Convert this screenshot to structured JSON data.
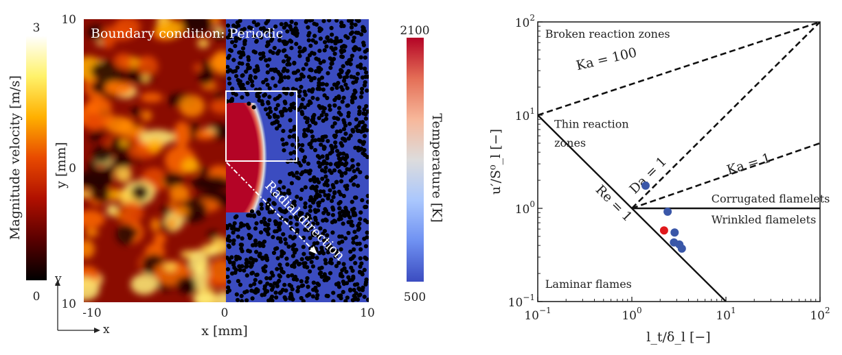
{
  "left_panel": {
    "annotation": "Boundary condition: Periodic",
    "radial_label": "Radial direction",
    "xlabel": "x [mm]",
    "ylabel": "y [mm]",
    "x_ticks": [
      "-10",
      "0",
      "10"
    ],
    "y_ticks": [
      "10",
      "0",
      "10"
    ],
    "axis_icon_x": "x",
    "axis_icon_y": "y",
    "velocity_colorbar": {
      "label": "Magnitude velocity [m/s]",
      "min": "0",
      "max": "3",
      "colors": [
        "#000000",
        "#5a0000",
        "#b01000",
        "#e84a00",
        "#ffb000",
        "#fff26a",
        "#ffffff"
      ]
    },
    "temperature_colorbar": {
      "label": "Temperature [K]",
      "min": "500",
      "max": "2100",
      "colors": [
        "#3b4cc0",
        "#6f91f2",
        "#aac7fd",
        "#dddcdc",
        "#f7b79a",
        "#e46e56",
        "#b40426"
      ]
    },
    "colors": {
      "flame_core": "#b40426",
      "background_blue": "#3b4cc0",
      "particles": "#000000"
    }
  },
  "chart_data": {
    "type": "scatter",
    "title": "",
    "xlabel": "l_t/δ_l [−]",
    "ylabel": "u′/S⁰_l [−]",
    "xscale": "log",
    "yscale": "log",
    "xlim": [
      0.1,
      100
    ],
    "ylim": [
      0.1,
      100
    ],
    "x_ticks": [
      {
        "v": 0.1,
        "base": "10",
        "exp": "−1"
      },
      {
        "v": 1,
        "base": "10",
        "exp": "0"
      },
      {
        "v": 10,
        "base": "10",
        "exp": "1"
      },
      {
        "v": 100,
        "base": "10",
        "exp": "2"
      }
    ],
    "y_ticks": [
      {
        "v": 0.1,
        "base": "10",
        "exp": "−1"
      },
      {
        "v": 1,
        "base": "10",
        "exp": "0"
      },
      {
        "v": 10,
        "base": "10",
        "exp": "1"
      },
      {
        "v": 100,
        "base": "10",
        "exp": "2"
      }
    ],
    "lines": [
      {
        "name": "Re = 1",
        "style": "solid",
        "x": [
          0.1,
          10
        ],
        "y": [
          10,
          0.1
        ]
      },
      {
        "name": "corrugated-wrinkled boundary",
        "style": "solid",
        "x": [
          1,
          100
        ],
        "y": [
          1,
          1
        ]
      },
      {
        "name": "Ka = 100",
        "style": "dashed",
        "x": [
          0.1,
          100
        ],
        "y": [
          10,
          100
        ]
      },
      {
        "name": "Da = 1",
        "style": "dashed",
        "x": [
          1,
          100
        ],
        "y": [
          1,
          100
        ]
      },
      {
        "name": "Ka = 1",
        "style": "dashed",
        "x": [
          1,
          100
        ],
        "y": [
          1,
          5
        ]
      }
    ],
    "line_labels": [
      {
        "text": "Ka = 100",
        "x": 0.55,
        "y": 36,
        "angle": -13
      },
      {
        "text": "Da = 1",
        "x": 1.6,
        "y": 2.1,
        "angle": -45
      },
      {
        "text": "Ka = 1",
        "x": 18,
        "y": 2.7,
        "angle": -17
      },
      {
        "text": "Re = 1",
        "x": 0.6,
        "y": 1.05,
        "angle": 45
      }
    ],
    "region_labels": [
      {
        "text": "Broken reaction zones",
        "x": 0.12,
        "y": 68
      },
      {
        "text": "Thin reaction",
        "x": 0.15,
        "y": 7.3
      },
      {
        "text": "zones",
        "x": 0.15,
        "y": 4.6
      },
      {
        "text": "Corrugated flamelets",
        "x": 7,
        "y": 1.15
      },
      {
        "text": "Wrinkled flamelets",
        "x": 7,
        "y": 0.69
      },
      {
        "text": "Laminar flames",
        "x": 0.12,
        "y": 0.14
      }
    ],
    "points": [
      {
        "x": 1.4,
        "y": 1.75,
        "color": "#3a57a8"
      },
      {
        "x": 2.4,
        "y": 0.92,
        "color": "#3a57a8"
      },
      {
        "x": 2.2,
        "y": 0.58,
        "color": "#e0191c"
      },
      {
        "x": 2.85,
        "y": 0.55,
        "color": "#3a57a8"
      },
      {
        "x": 2.8,
        "y": 0.43,
        "color": "#3a57a8"
      },
      {
        "x": 3.2,
        "y": 0.41,
        "color": "#3a57a8"
      },
      {
        "x": 3.4,
        "y": 0.37,
        "color": "#3a57a8"
      }
    ],
    "grid": false,
    "legend": "none"
  }
}
